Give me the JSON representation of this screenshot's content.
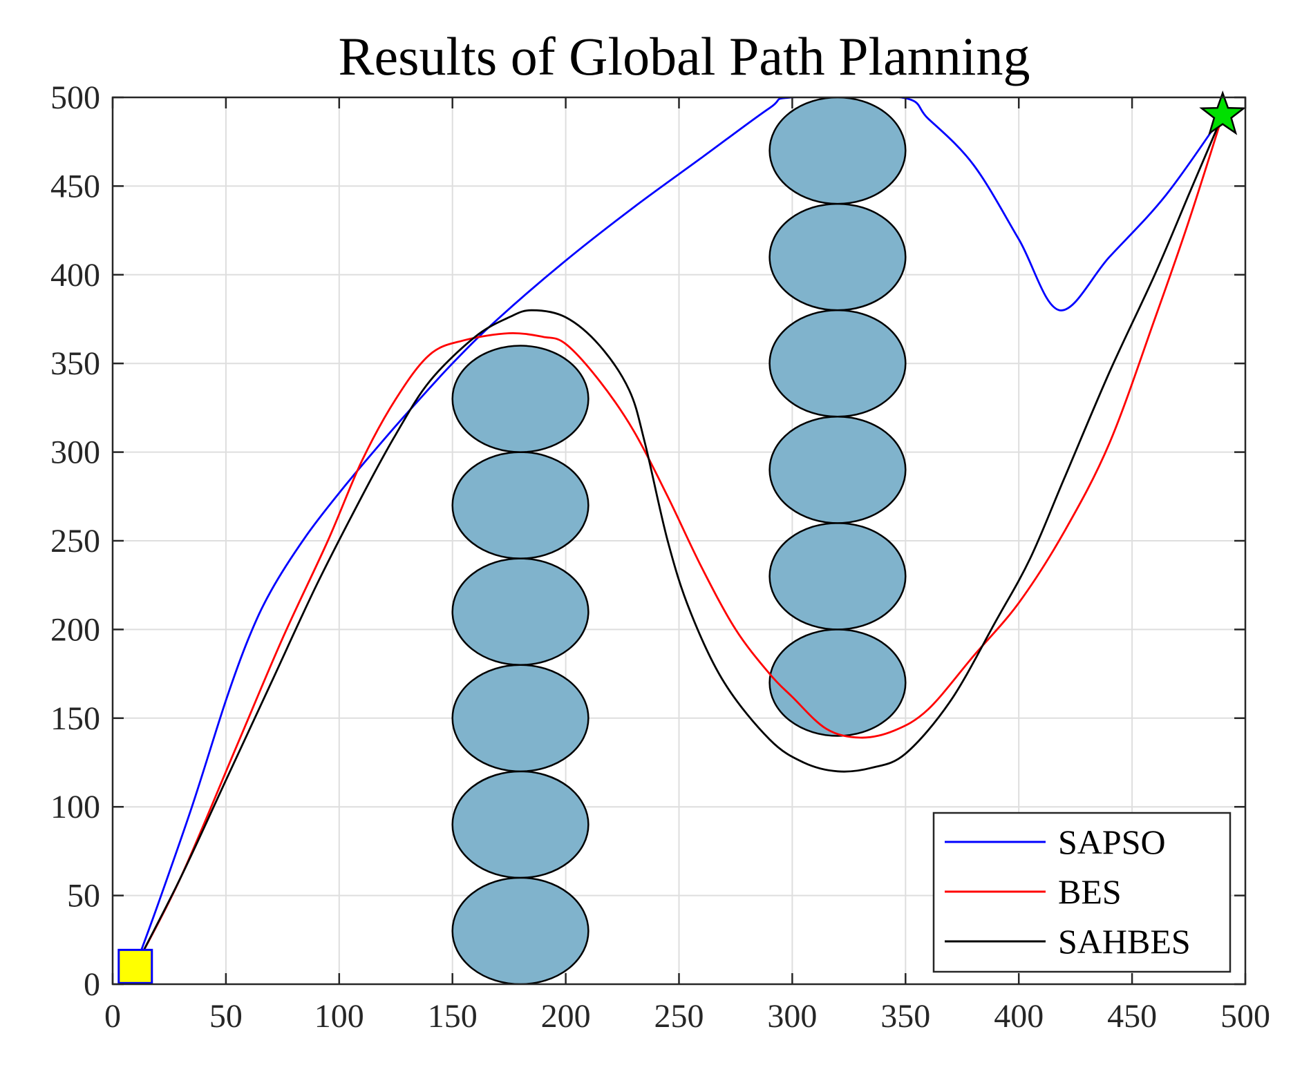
{
  "chart_data": {
    "type": "line",
    "title": "Results of Global Path Planning",
    "xlabel": "",
    "ylabel": "",
    "xlim": [
      0,
      500
    ],
    "ylim": [
      0,
      500
    ],
    "xticks": [
      0,
      50,
      100,
      150,
      200,
      250,
      300,
      350,
      400,
      450,
      500
    ],
    "yticks": [
      0,
      50,
      100,
      150,
      200,
      250,
      300,
      350,
      400,
      450,
      500
    ],
    "grid": true,
    "legend_position": "bottom-right",
    "obstacle_color": "#80b3cc",
    "obstacles": [
      {
        "cx": 180,
        "cy": 30,
        "rx": 30,
        "ry": 30
      },
      {
        "cx": 180,
        "cy": 90,
        "rx": 30,
        "ry": 30
      },
      {
        "cx": 180,
        "cy": 150,
        "rx": 30,
        "ry": 30
      },
      {
        "cx": 180,
        "cy": 210,
        "rx": 30,
        "ry": 30
      },
      {
        "cx": 180,
        "cy": 270,
        "rx": 30,
        "ry": 30
      },
      {
        "cx": 180,
        "cy": 330,
        "rx": 30,
        "ry": 30
      },
      {
        "cx": 320,
        "cy": 170,
        "rx": 30,
        "ry": 30
      },
      {
        "cx": 320,
        "cy": 230,
        "rx": 30,
        "ry": 30
      },
      {
        "cx": 320,
        "cy": 290,
        "rx": 30,
        "ry": 30
      },
      {
        "cx": 320,
        "cy": 350,
        "rx": 30,
        "ry": 30
      },
      {
        "cx": 320,
        "cy": 410,
        "rx": 30,
        "ry": 30
      },
      {
        "cx": 320,
        "cy": 470,
        "rx": 30,
        "ry": 30
      }
    ],
    "start": {
      "x": 10,
      "y": 10,
      "marker": "square",
      "color": "#ffff00",
      "edge_color": "#0000ff"
    },
    "goal": {
      "x": 490,
      "y": 490,
      "marker": "star",
      "color": "#00e000",
      "edge_color": "#000000"
    },
    "series": [
      {
        "name": "SAPSO",
        "color": "#0000ff",
        "points": [
          [
            10,
            10
          ],
          [
            20,
            45
          ],
          [
            35,
            100
          ],
          [
            50,
            160
          ],
          [
            60,
            195
          ],
          [
            70,
            222
          ],
          [
            85,
            252
          ],
          [
            100,
            277
          ],
          [
            115,
            300
          ],
          [
            130,
            322
          ],
          [
            150,
            350
          ],
          [
            170,
            375
          ],
          [
            200,
            408
          ],
          [
            230,
            438
          ],
          [
            260,
            466
          ],
          [
            290,
            494
          ],
          [
            300,
            500
          ],
          [
            348,
            500
          ],
          [
            360,
            488
          ],
          [
            380,
            462
          ],
          [
            400,
            420
          ],
          [
            418,
            380
          ],
          [
            440,
            410
          ],
          [
            465,
            445
          ],
          [
            490,
            490
          ]
        ]
      },
      {
        "name": "BES",
        "color": "#ff0000",
        "points": [
          [
            10,
            10
          ],
          [
            30,
            60
          ],
          [
            55,
            135
          ],
          [
            75,
            195
          ],
          [
            95,
            250
          ],
          [
            110,
            295
          ],
          [
            125,
            330
          ],
          [
            140,
            355
          ],
          [
            155,
            363
          ],
          [
            175,
            367
          ],
          [
            190,
            365
          ],
          [
            200,
            361
          ],
          [
            215,
            340
          ],
          [
            230,
            312
          ],
          [
            245,
            275
          ],
          [
            260,
            235
          ],
          [
            275,
            200
          ],
          [
            290,
            175
          ],
          [
            300,
            162
          ],
          [
            315,
            144
          ],
          [
            330,
            139
          ],
          [
            345,
            143
          ],
          [
            360,
            155
          ],
          [
            380,
            185
          ],
          [
            400,
            215
          ],
          [
            420,
            255
          ],
          [
            440,
            305
          ],
          [
            460,
            375
          ],
          [
            475,
            430
          ],
          [
            490,
            490
          ]
        ]
      },
      {
        "name": "SAHBES",
        "color": "#000000",
        "points": [
          [
            10,
            10
          ],
          [
            30,
            60
          ],
          [
            50,
            115
          ],
          [
            70,
            170
          ],
          [
            90,
            225
          ],
          [
            110,
            275
          ],
          [
            125,
            310
          ],
          [
            140,
            340
          ],
          [
            160,
            365
          ],
          [
            175,
            376
          ],
          [
            185,
            380
          ],
          [
            200,
            376
          ],
          [
            215,
            360
          ],
          [
            228,
            335
          ],
          [
            235,
            305
          ],
          [
            245,
            250
          ],
          [
            255,
            210
          ],
          [
            270,
            170
          ],
          [
            290,
            138
          ],
          [
            305,
            125
          ],
          [
            320,
            120
          ],
          [
            335,
            122
          ],
          [
            350,
            130
          ],
          [
            370,
            160
          ],
          [
            390,
            205
          ],
          [
            405,
            240
          ],
          [
            420,
            285
          ],
          [
            440,
            345
          ],
          [
            460,
            400
          ],
          [
            475,
            445
          ],
          [
            490,
            490
          ]
        ]
      }
    ]
  }
}
